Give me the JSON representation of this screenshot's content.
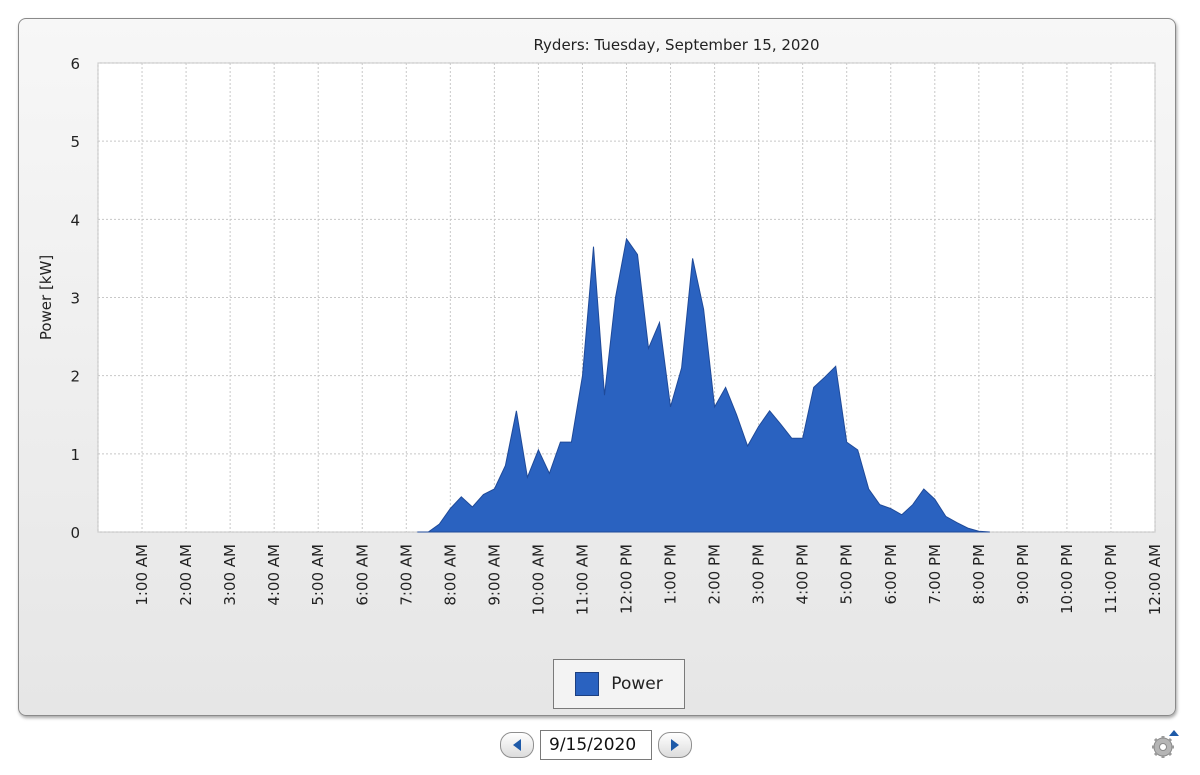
{
  "panel": {
    "legend_label": "Power"
  },
  "navigation": {
    "date_value": "9/15/2020"
  },
  "icons": {
    "prev": "arrow-left-icon",
    "next": "arrow-right-icon",
    "settings": "gear-icon"
  },
  "colors": {
    "area_fill": "#2a62c0",
    "area_stroke": "#1f4a99",
    "grid": "#c8c8c8"
  },
  "chart_data": {
    "type": "area",
    "title": "Ryders: Tuesday, September 15, 2020",
    "xlabel": "",
    "ylabel": "Power [kW]",
    "ylim": [
      0,
      6
    ],
    "yticks": [
      0,
      1,
      2,
      3,
      4,
      5,
      6
    ],
    "xlim_hours": [
      0,
      24
    ],
    "xtick_labels": [
      "1:00 AM",
      "2:00 AM",
      "3:00 AM",
      "4:00 AM",
      "5:00 AM",
      "6:00 AM",
      "7:00 AM",
      "8:00 AM",
      "9:00 AM",
      "10:00 AM",
      "11:00 AM",
      "12:00 PM",
      "1:00 PM",
      "2:00 PM",
      "3:00 PM",
      "4:00 PM",
      "5:00 PM",
      "6:00 PM",
      "7:00 PM",
      "8:00 PM",
      "9:00 PM",
      "10:00 PM",
      "11:00 PM",
      "12:00 AM"
    ],
    "grid": true,
    "legend": "bottom-center",
    "series": [
      {
        "name": "Power",
        "points": [
          [
            "7:15 AM",
            0
          ],
          [
            "7:30 AM",
            0
          ],
          [
            "7:45 AM",
            0.1
          ],
          [
            "8:00 AM",
            0.3
          ],
          [
            "8:15 AM",
            0.45
          ],
          [
            "8:30 AM",
            0.32
          ],
          [
            "8:45 AM",
            0.48
          ],
          [
            "9:00 AM",
            0.55
          ],
          [
            "9:15 AM",
            0.85
          ],
          [
            "9:30 AM",
            1.55
          ],
          [
            "9:45 AM",
            0.7
          ],
          [
            "10:00 AM",
            1.05
          ],
          [
            "10:15 AM",
            0.75
          ],
          [
            "10:30 AM",
            1.15
          ],
          [
            "10:45 AM",
            1.15
          ],
          [
            "11:00 AM",
            2.0
          ],
          [
            "11:15 AM",
            3.65
          ],
          [
            "11:30 AM",
            1.75
          ],
          [
            "11:45 AM",
            3.0
          ],
          [
            "12:00 PM",
            3.75
          ],
          [
            "12:15 PM",
            3.55
          ],
          [
            "12:30 PM",
            2.35
          ],
          [
            "12:45 PM",
            2.68
          ],
          [
            "1:00 PM",
            1.6
          ],
          [
            "1:15 PM",
            2.1
          ],
          [
            "1:30 PM",
            3.5
          ],
          [
            "1:45 PM",
            2.85
          ],
          [
            "2:00 PM",
            1.6
          ],
          [
            "2:15 PM",
            1.85
          ],
          [
            "2:30 PM",
            1.5
          ],
          [
            "2:45 PM",
            1.1
          ],
          [
            "3:00 PM",
            1.35
          ],
          [
            "3:15 PM",
            1.55
          ],
          [
            "3:30 PM",
            1.38
          ],
          [
            "3:45 PM",
            1.2
          ],
          [
            "4:00 PM",
            1.2
          ],
          [
            "4:15 PM",
            1.85
          ],
          [
            "4:30 PM",
            1.98
          ],
          [
            "4:45 PM",
            2.12
          ],
          [
            "5:00 PM",
            1.15
          ],
          [
            "5:15 PM",
            1.05
          ],
          [
            "5:30 PM",
            0.55
          ],
          [
            "5:45 PM",
            0.35
          ],
          [
            "6:00 PM",
            0.3
          ],
          [
            "6:15 PM",
            0.22
          ],
          [
            "6:30 PM",
            0.35
          ],
          [
            "6:45 PM",
            0.55
          ],
          [
            "7:00 PM",
            0.42
          ],
          [
            "7:15 PM",
            0.2
          ],
          [
            "7:30 PM",
            0.12
          ],
          [
            "7:45 PM",
            0.05
          ],
          [
            "8:00 PM",
            0.01
          ],
          [
            "8:15 PM",
            0
          ]
        ]
      }
    ]
  }
}
